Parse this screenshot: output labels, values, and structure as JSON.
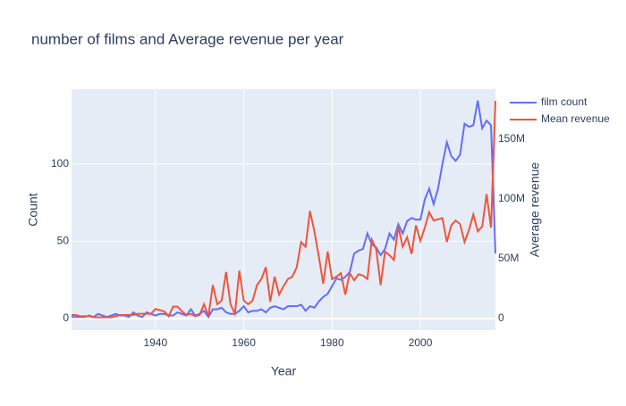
{
  "chart_data": {
    "type": "line",
    "title": "number of films and Average revenue per year",
    "xlabel": "Year",
    "ylabel": "Count",
    "y2label": "Average revenue",
    "x": [
      1921,
      1922,
      1923,
      1924,
      1925,
      1926,
      1927,
      1928,
      1929,
      1930,
      1931,
      1932,
      1933,
      1934,
      1935,
      1936,
      1937,
      1938,
      1939,
      1940,
      1941,
      1942,
      1943,
      1944,
      1945,
      1946,
      1947,
      1948,
      1949,
      1950,
      1951,
      1952,
      1953,
      1954,
      1955,
      1956,
      1957,
      1958,
      1959,
      1960,
      1961,
      1962,
      1963,
      1964,
      1965,
      1966,
      1967,
      1968,
      1969,
      1970,
      1971,
      1972,
      1973,
      1974,
      1975,
      1976,
      1977,
      1978,
      1979,
      1980,
      1981,
      1982,
      1983,
      1984,
      1985,
      1986,
      1987,
      1988,
      1989,
      1990,
      1991,
      1992,
      1993,
      1994,
      1995,
      1996,
      1997,
      1998,
      1999,
      2000,
      2001,
      2002,
      2003,
      2004,
      2005,
      2006,
      2007,
      2008,
      2009,
      2010,
      2011,
      2012,
      2013,
      2014,
      2015,
      2016,
      2017
    ],
    "series": [
      {
        "name": "film count",
        "color": "#636efa",
        "axis": "y",
        "values": [
          1,
          1,
          1,
          1,
          2,
          1,
          3,
          2,
          1,
          2,
          3,
          2,
          2,
          1,
          4,
          2,
          1,
          4,
          3,
          2,
          3,
          3,
          2,
          2,
          4,
          3,
          2,
          6,
          2,
          3,
          5,
          1,
          6,
          6,
          7,
          4,
          3,
          3,
          5,
          8,
          4,
          5,
          5,
          6,
          4,
          7,
          8,
          7,
          6,
          8,
          8,
          8,
          9,
          5,
          8,
          7,
          11,
          14,
          16,
          21,
          26,
          25,
          27,
          30,
          42,
          44,
          45,
          55,
          48,
          46,
          41,
          45,
          55,
          51,
          61,
          55,
          63,
          65,
          64,
          64,
          77,
          84,
          74,
          84,
          100,
          114,
          105,
          102,
          106,
          126,
          124,
          125,
          141,
          123,
          128,
          125,
          42
        ]
      },
      {
        "name": "Mean revenue",
        "color": "#EF553B",
        "axis": "y2",
        "values": [
          3000000,
          3000000,
          2000000,
          2000000,
          2000000,
          1000000,
          1000000,
          1000000,
          1000000,
          1000000,
          2000000,
          3000000,
          3000000,
          3000000,
          3000000,
          4000000,
          4000000,
          4000000,
          4000000,
          8000000,
          7000000,
          6000000,
          2000000,
          10000000,
          10000000,
          6000000,
          3000000,
          4000000,
          2000000,
          3000000,
          12000000,
          2000000,
          28000000,
          12000000,
          15000000,
          39000000,
          12000000,
          4000000,
          40000000,
          15000000,
          12000000,
          15000000,
          28000000,
          33000000,
          43000000,
          14000000,
          35000000,
          20000000,
          27000000,
          33000000,
          35000000,
          43000000,
          64000000,
          60000000,
          90000000,
          73000000,
          52000000,
          29000000,
          56000000,
          33000000,
          35000000,
          38000000,
          20000000,
          38000000,
          32000000,
          37000000,
          36000000,
          33000000,
          66000000,
          58000000,
          28000000,
          56000000,
          53000000,
          49000000,
          77000000,
          60000000,
          68000000,
          54000000,
          78000000,
          65000000,
          76000000,
          89000000,
          82000000,
          83000000,
          84000000,
          64000000,
          78000000,
          82000000,
          79000000,
          64000000,
          74000000,
          87000000,
          73000000,
          77000000,
          104000000,
          76000000,
          182000000
        ]
      }
    ],
    "xlim": [
      1921,
      2017
    ],
    "xticks": [
      1940,
      1960,
      1980,
      2000
    ],
    "ylim": [
      -7.5,
      148.3
    ],
    "yticks": [
      0,
      50,
      100
    ],
    "y2lim": [
      -9700000,
      191800000
    ],
    "y2ticks": [
      0,
      {
        "value": 50000000,
        "label": "50M"
      },
      {
        "value": 100000000,
        "label": "100M"
      },
      {
        "value": 150000000,
        "label": "150M"
      }
    ],
    "grid": true,
    "legend": "right"
  }
}
